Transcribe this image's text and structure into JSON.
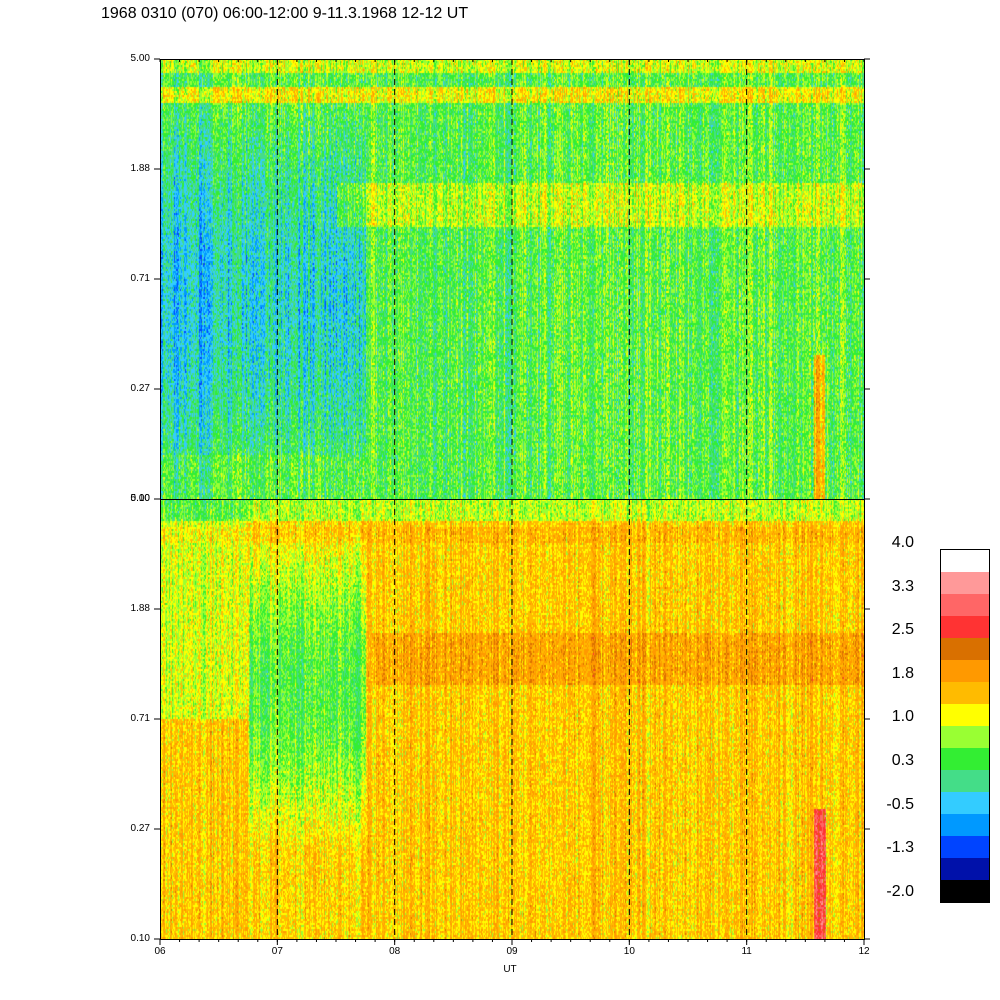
{
  "title": "1968 0310 (070) 06:00-12:00 9-11.3.1968  12-12 UT",
  "chart_data": [
    {
      "type": "heatmap",
      "panel": "top",
      "x_range": [
        "06",
        "12"
      ],
      "y_ticks": [
        "0.10",
        "0.27",
        "0.71",
        "1.88",
        "5.00"
      ],
      "y_scale": "log",
      "ylim": [
        0.1,
        5.0
      ],
      "dominant_level": "green / cyan (~0.3 to -0.5)",
      "features": "blue/dark-blue streaks 06-07:45 at lower frequencies; yellow band near 1.88-2.2; orange spike near 11:40 below 0.27"
    },
    {
      "type": "heatmap",
      "panel": "bottom",
      "x_range": [
        "06",
        "12"
      ],
      "y_ticks": [
        "0.10",
        "0.27",
        "0.71",
        "1.88",
        "5.00"
      ],
      "y_scale": "log",
      "ylim": [
        0.1,
        5.0
      ],
      "dominant_level": "orange / yellow (~1.0 to 2.0)",
      "features": "green/cyan region 06:40-07:45 at 0.3-2.0; red spike near 11:40 below 0.27"
    }
  ],
  "x_axis": {
    "ticks": [
      "06",
      "07",
      "08",
      "09",
      "10",
      "11",
      "12"
    ],
    "label": "UT",
    "dashed_gridlines": [
      "07",
      "08",
      "09",
      "10",
      "11"
    ]
  },
  "colorbar": {
    "labels": [
      "4.0",
      "3.3",
      "2.5",
      "1.8",
      "1.0",
      "0.3",
      "-0.5",
      "-1.3",
      "-2.0"
    ],
    "colors": [
      "#ffffff",
      "#ff9999",
      "#ff6666",
      "#ff3333",
      "#d97000",
      "#ff9900",
      "#ffbb00",
      "#ffff00",
      "#99ff33",
      "#33ee33",
      "#44dd88",
      "#33ccff",
      "#0099ff",
      "#0044ff",
      "#0011aa",
      "#000000"
    ]
  }
}
